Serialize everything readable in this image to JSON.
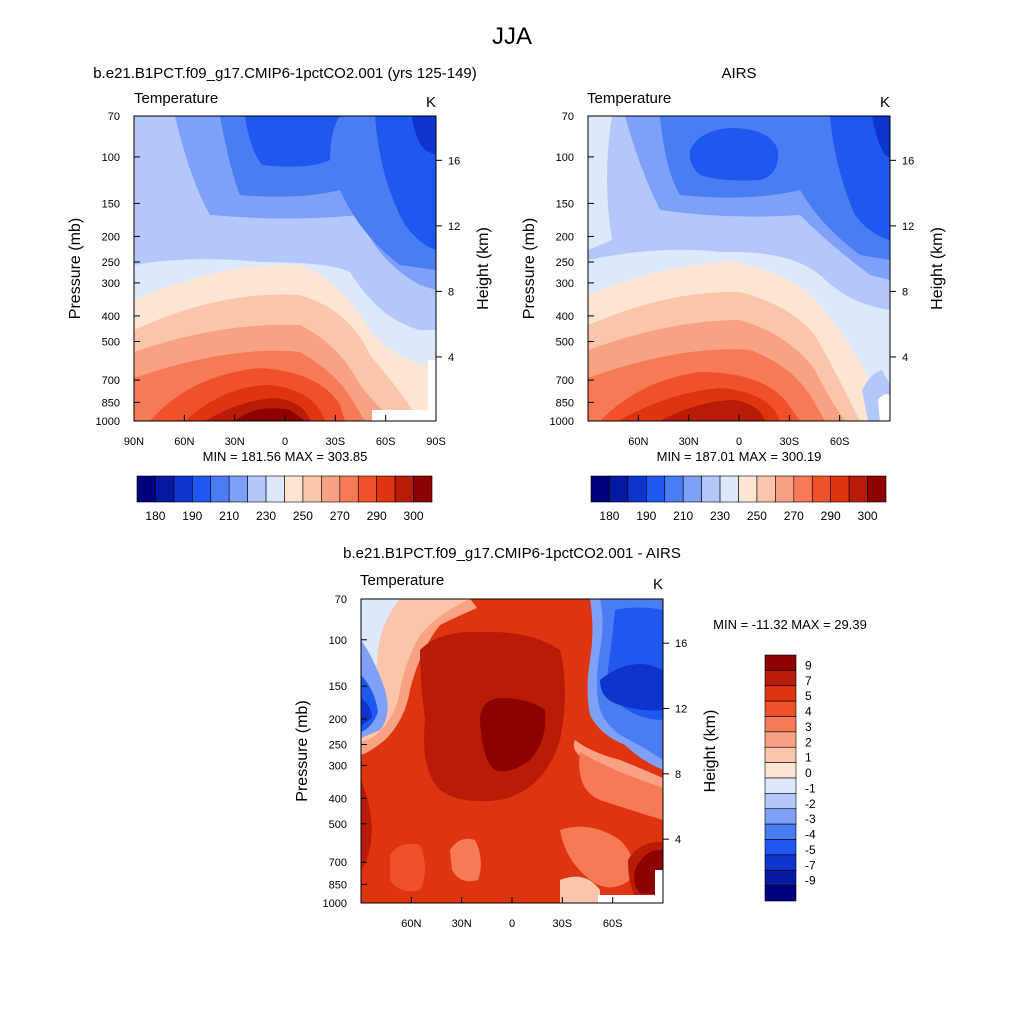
{
  "title": "JJA",
  "colors": {
    "temp_scale": [
      "#00007f",
      "#0518a0",
      "#0d34cc",
      "#1e58ee",
      "#4a7cf2",
      "#7ea1f7",
      "#b3c7fb",
      "#dde8fc",
      "#fde5d3",
      "#fbc5ac",
      "#f8a283",
      "#f57a55",
      "#ef522a",
      "#df3410",
      "#b81c06",
      "#8c0201"
    ],
    "diff_scale": [
      "#00007f",
      "#0518a0",
      "#0d34cc",
      "#1e58ee",
      "#4a7cf2",
      "#7ea1f7",
      "#b3c7fb",
      "#dde8fc",
      "#fde5d3",
      "#fbc5ac",
      "#f8a283",
      "#f57a55",
      "#ef522a",
      "#df3410",
      "#b81c06",
      "#8c0201"
    ]
  },
  "chart_data": [
    {
      "type": "heatmap",
      "title": "b.e21.B1PCT.f09_g17.CMIP6-1pctCO2.001 (yrs 125-149)",
      "subtitle_left": "Temperature",
      "subtitle_right": "K",
      "ylabel": "Pressure (mb)",
      "ylabel_right": "Height (km)",
      "x_ticks": [
        "90N",
        "60N",
        "30N",
        "0",
        "30S",
        "60S",
        "90S"
      ],
      "x_range": [
        90,
        -90
      ],
      "y_ticks": [
        "70",
        "100",
        "150",
        "200",
        "250",
        "300",
        "400",
        "500",
        "700",
        "850",
        "1000"
      ],
      "y_ticks_right": [
        "16",
        "12",
        "8",
        "4"
      ],
      "stats": "MIN = 181.56  MAX = 303.85",
      "colorbar_labels": [
        "180",
        "190",
        "210",
        "230",
        "250",
        "270",
        "290",
        "300"
      ],
      "min": 181.56,
      "max": 303.85
    },
    {
      "type": "heatmap",
      "title": "AIRS",
      "subtitle_left": "Temperature",
      "subtitle_right": "K",
      "ylabel": "Pressure (mb)",
      "ylabel_right": "Height (km)",
      "x_ticks": [
        "60N",
        "30N",
        "0",
        "30S",
        "60S"
      ],
      "x_range": [
        90,
        -90
      ],
      "y_ticks": [
        "70",
        "100",
        "150",
        "200",
        "250",
        "300",
        "400",
        "500",
        "700",
        "850",
        "1000"
      ],
      "y_ticks_right": [
        "16",
        "12",
        "8",
        "4"
      ],
      "stats": "MIN = 187.01  MAX = 300.19",
      "colorbar_labels": [
        "180",
        "190",
        "210",
        "230",
        "250",
        "270",
        "290",
        "300"
      ],
      "min": 187.01,
      "max": 300.19
    },
    {
      "type": "heatmap",
      "title": "b.e21.B1PCT.f09_g17.CMIP6-1pctCO2.001 - AIRS",
      "subtitle_left": "Temperature",
      "subtitle_right": "K",
      "ylabel": "Pressure (mb)",
      "ylabel_right": "Height (km)",
      "x_ticks": [
        "60N",
        "30N",
        "0",
        "30S",
        "60S"
      ],
      "x_range": [
        90,
        -90
      ],
      "y_ticks": [
        "70",
        "100",
        "150",
        "200",
        "250",
        "300",
        "400",
        "500",
        "700",
        "850",
        "1000"
      ],
      "y_ticks_right": [
        "16",
        "12",
        "8",
        "4"
      ],
      "stats": "MIN = -11.32  MAX =  29.39",
      "colorbar_labels": [
        "9",
        "7",
        "5",
        "4",
        "3",
        "2",
        "1",
        "0",
        "-1",
        "-2",
        "-3",
        "-4",
        "-5",
        "-7",
        "-9"
      ],
      "min": -11.32,
      "max": 29.39
    }
  ]
}
